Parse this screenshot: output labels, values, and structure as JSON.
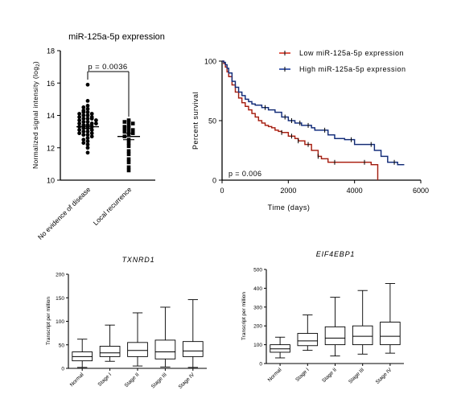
{
  "chart_data": [
    {
      "type": "scatter",
      "title": "miR-125a-5p expression",
      "ylabel": "Normalized signal intensity (log",
      "ylabel_sub": "2",
      "ylabel_end": ")",
      "ylim": [
        10,
        18
      ],
      "yticks": [
        "10",
        "12",
        "14",
        "16",
        "18"
      ],
      "categories": [
        "No evidence of disease",
        "Local recurrence"
      ],
      "annotation": "p = 0.0036",
      "series": [
        {
          "marker": "circle",
          "mean": 13.3,
          "sem": 0.1,
          "values": [
            15.9,
            14.9,
            14.6,
            14.5,
            14.4,
            14.3,
            14.2,
            14.2,
            14.1,
            14.1,
            14.0,
            14.0,
            13.9,
            13.9,
            13.8,
            13.8,
            13.8,
            13.7,
            13.7,
            13.6,
            13.6,
            13.5,
            13.5,
            13.5,
            13.4,
            13.4,
            13.3,
            13.3,
            13.2,
            13.2,
            13.1,
            13.1,
            13.0,
            13.0,
            12.9,
            12.9,
            12.8,
            12.8,
            12.7,
            12.6,
            12.5,
            12.4,
            12.3,
            12.2,
            12.0,
            11.7
          ]
        },
        {
          "marker": "square",
          "mean": 12.7,
          "sem": 0.2,
          "values": [
            13.7,
            13.6,
            13.6,
            13.5,
            13.4,
            13.3,
            13.2,
            13.2,
            13.1,
            13.0,
            13.0,
            12.9,
            12.8,
            12.7,
            12.5,
            12.3,
            12.1,
            11.8,
            11.6,
            11.3,
            11.1,
            10.8,
            10.6
          ]
        }
      ]
    },
    {
      "type": "line",
      "subtype": "kaplan-meier",
      "xlabel": "Time (days)",
      "ylabel": "Percent survival",
      "xlim": [
        0,
        6000
      ],
      "ylim": [
        0,
        100
      ],
      "xticks": [
        "0",
        "2000",
        "4000",
        "6000"
      ],
      "yticks": [
        "0",
        "50",
        "100"
      ],
      "annotation": "p = 0.006",
      "legend_position": "top-right",
      "series": [
        {
          "name": "Low miR-125a-5p expression",
          "color": "#d7301f",
          "x": [
            0,
            50,
            100,
            150,
            200,
            300,
            400,
            500,
            600,
            700,
            800,
            900,
            1000,
            1100,
            1200,
            1300,
            1400,
            1500,
            1600,
            1700,
            1800,
            2000,
            2200,
            2300,
            2500,
            2700,
            2900,
            3000,
            3200,
            3500,
            4000,
            4500,
            4700
          ],
          "y": [
            100,
            98,
            95,
            91,
            87,
            80,
            74,
            69,
            65,
            62,
            59,
            56,
            53,
            50,
            48,
            46,
            45,
            44,
            42,
            41,
            40,
            37,
            35,
            33,
            30,
            25,
            20,
            18,
            15,
            15,
            15,
            13,
            0
          ],
          "censor_x": [
            1800,
            2100,
            2300,
            2600,
            2900,
            3400,
            4300
          ]
        },
        {
          "name": "High miR-125a-5p expression",
          "color": "#1f3f9e",
          "x": [
            0,
            50,
            100,
            150,
            200,
            300,
            400,
            500,
            600,
            700,
            800,
            900,
            1000,
            1200,
            1400,
            1600,
            1800,
            2000,
            2200,
            2400,
            2700,
            2800,
            3200,
            3400,
            3700,
            4000,
            4600,
            4800,
            5000,
            5300,
            5500
          ],
          "y": [
            100,
            99,
            97,
            94,
            90,
            83,
            78,
            74,
            71,
            68,
            66,
            64,
            63,
            61,
            59,
            57,
            53,
            50,
            48,
            46,
            44,
            42,
            38,
            35,
            34,
            30,
            25,
            20,
            15,
            13,
            13
          ],
          "censor_x": [
            1300,
            1900,
            2100,
            2350,
            2600,
            3100,
            3900,
            4500,
            5200
          ]
        }
      ]
    },
    {
      "type": "box",
      "title": "TXNRD1",
      "ylabel": "Transcript per million",
      "ylim": [
        0,
        200
      ],
      "yticks": [
        "0",
        "50",
        "100",
        "150",
        "200"
      ],
      "categories": [
        "Normal",
        "Stage I",
        "Stage II",
        "Stage III",
        "Stage IV"
      ],
      "boxes": [
        {
          "min": 2,
          "q1": 16,
          "median": 25,
          "q3": 35,
          "max": 62
        },
        {
          "min": 15,
          "q1": 25,
          "median": 33,
          "q3": 47,
          "max": 92
        },
        {
          "min": 5,
          "q1": 25,
          "median": 38,
          "q3": 55,
          "max": 118
        },
        {
          "min": 3,
          "q1": 20,
          "median": 35,
          "q3": 60,
          "max": 130
        },
        {
          "min": 2,
          "q1": 25,
          "median": 37,
          "q3": 57,
          "max": 146
        }
      ]
    },
    {
      "type": "box",
      "title": "EIF4EBP1",
      "ylabel": "Transcript per million",
      "ylim": [
        0,
        500
      ],
      "yticks": [
        "0",
        "100",
        "200",
        "300",
        "400",
        "500"
      ],
      "categories": [
        "Normal",
        "Stage I",
        "Stage II",
        "Stage III",
        "Stage IV"
      ],
      "boxes": [
        {
          "min": 30,
          "q1": 60,
          "median": 78,
          "q3": 100,
          "max": 140
        },
        {
          "min": 70,
          "q1": 95,
          "median": 120,
          "q3": 160,
          "max": 258
        },
        {
          "min": 40,
          "q1": 100,
          "median": 135,
          "q3": 195,
          "max": 352
        },
        {
          "min": 50,
          "q1": 100,
          "median": 145,
          "q3": 200,
          "max": 388
        },
        {
          "min": 55,
          "q1": 100,
          "median": 145,
          "q3": 220,
          "max": 425
        }
      ]
    }
  ]
}
